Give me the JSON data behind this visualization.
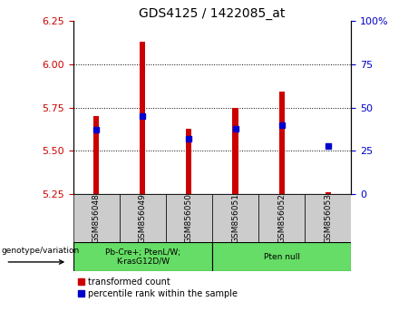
{
  "title": "GDS4125 / 1422085_at",
  "samples": [
    "GSM856048",
    "GSM856049",
    "GSM856050",
    "GSM856051",
    "GSM856052",
    "GSM856053"
  ],
  "red_values": [
    5.7,
    6.13,
    5.63,
    5.75,
    5.84,
    5.26
  ],
  "blue_percentiles": [
    37,
    45,
    32,
    38,
    40,
    28
  ],
  "ylim_left": [
    5.25,
    6.25
  ],
  "ylim_right": [
    0,
    100
  ],
  "yticks_left": [
    5.25,
    5.5,
    5.75,
    6.0,
    6.25
  ],
  "yticks_right": [
    0,
    25,
    50,
    75,
    100
  ],
  "grid_lines": [
    5.5,
    5.75,
    6.0
  ],
  "bar_bottom": 5.25,
  "bar_width": 0.12,
  "red_color": "#cc0000",
  "blue_color": "#0000cc",
  "group1_label": "Pb-Cre+; PtenL/W;\nK-rasG12D/W",
  "group2_label": "Pten null",
  "group_bg_color": "#66dd66",
  "sample_bg_color": "#cccccc",
  "legend_red_label": "transformed count",
  "legend_blue_label": "percentile rank within the sample",
  "left_tick_color": "#cc0000",
  "right_tick_color": "#0000cc",
  "xlabel_genotype": "genotype/variation",
  "title_fontsize": 10,
  "tick_labelsize": 8,
  "bar_marker_size": 4
}
